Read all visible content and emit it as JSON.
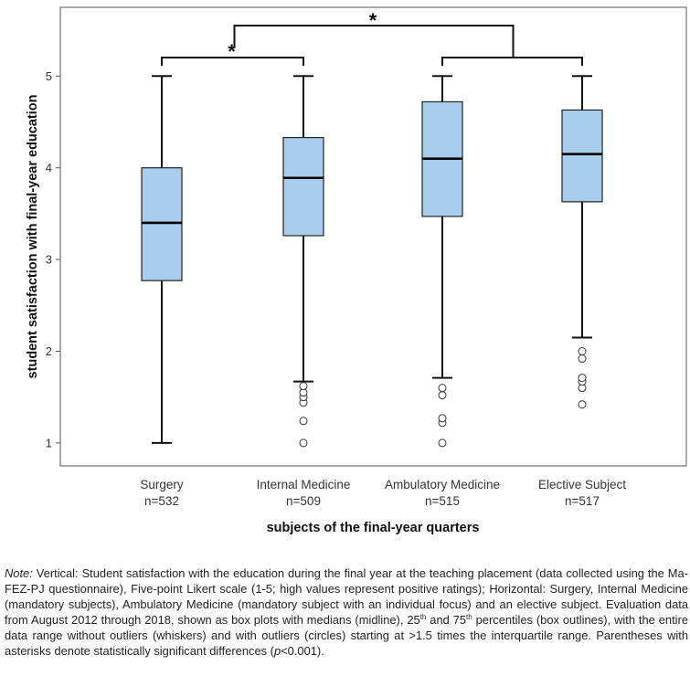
{
  "chart_data": {
    "type": "boxplot",
    "xlabel": "subjects of the final-year quarters",
    "ylabel": "student satisfaction with final-year education",
    "ylim": [
      0.75,
      5.75
    ],
    "yticks": [
      1,
      2,
      3,
      4,
      5
    ],
    "grid": false,
    "box_color": "#a9cdec",
    "categories": [
      {
        "name": "Surgery",
        "n_label": "n=532",
        "whisker_low": 1.0,
        "q1": 2.77,
        "median": 3.4,
        "q3": 4.0,
        "whisker_high": 5.0,
        "outliers": []
      },
      {
        "name": "Internal Medicine",
        "n_label": "n=509",
        "whisker_low": 1.67,
        "q1": 3.26,
        "median": 3.89,
        "q3": 4.33,
        "whisker_high": 5.0,
        "outliers": [
          1.0,
          1.24,
          1.44,
          1.5,
          1.55,
          1.62
        ]
      },
      {
        "name": "Ambulatory Medicine",
        "n_label": "n=515",
        "whisker_low": 1.71,
        "q1": 3.47,
        "median": 4.1,
        "q3": 4.72,
        "whisker_high": 5.0,
        "outliers": [
          1.0,
          1.22,
          1.27,
          1.52,
          1.6
        ]
      },
      {
        "name": "Elective Subject",
        "n_label": "n=517",
        "whisker_low": 2.15,
        "q1": 3.63,
        "median": 4.15,
        "q3": 4.63,
        "whisker_high": 5.0,
        "outliers": [
          1.42,
          1.6,
          1.67,
          1.71,
          1.92,
          2.0
        ]
      }
    ],
    "significance": [
      {
        "label": "*",
        "from": [
          0
        ],
        "to": [
          1
        ]
      },
      {
        "label": "*",
        "from": [
          0,
          1
        ],
        "to": [
          2,
          3
        ]
      }
    ]
  },
  "caption": {
    "note_label": "Note:",
    "seg1": " Vertical: Student satisfaction with the education during the final year at the teaching placement (data collected using the Ma-FEZ-PJ questionnaire), Five-point Likert scale (1-5; high values represent positive ratings); Horizontal: Surgery, Internal Medicine (mandatory subjects), Ambulatory Medicine (mandatory subject with an individual focus) and an elective subject. Evaluation data from August 2012 through 2018, shown as box plots with medians (midline), 25",
    "sup1": "th",
    "seg2": " and 75",
    "sup2": "th",
    "seg3": " percentiles (box outlines), with the entire data range without outliers (whiskers) and with outliers (circles) starting at >1.5 times the interquartile range. Parentheses with asterisks denote statistically significant differences (",
    "p_symbol": "p",
    "seg4": "<0.001)."
  }
}
